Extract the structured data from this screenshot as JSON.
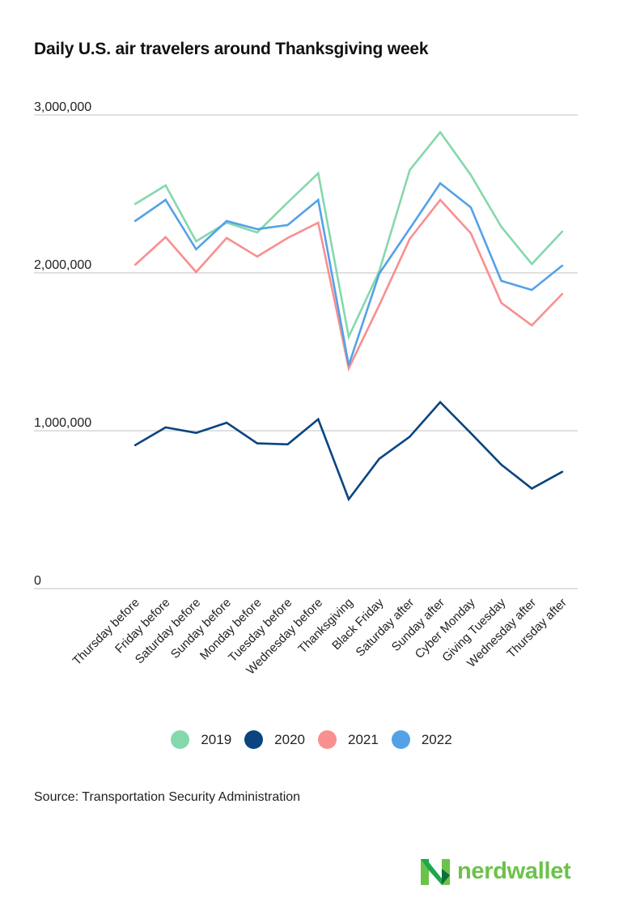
{
  "chart_data": {
    "type": "line",
    "title": "Daily U.S. air travelers around Thanksgiving week",
    "xlabel": "",
    "ylabel": "",
    "ylim": [
      0,
      3000000
    ],
    "yticks": [
      0,
      1000000,
      2000000,
      3000000
    ],
    "ytick_labels": [
      "0",
      "1,000,000",
      "2,000,000",
      "3,000,000"
    ],
    "grid": true,
    "legend_position": "bottom",
    "categories": [
      "Thursday before",
      "Friday before",
      "Saturday before",
      "Sunday before",
      "Monday before",
      "Tuesday before",
      "Wednesday before",
      "Thanksgiving",
      "Black Friday",
      "Saturday after",
      "Sunday after",
      "Cyber Monday",
      "Giving Tuesday",
      "Wednesday after",
      "Thursday after"
    ],
    "series": [
      {
        "name": "2019",
        "color": "#85d8ab",
        "values": [
          2436000,
          2554000,
          2200000,
          2318000,
          2256000,
          2446000,
          2631000,
          1595000,
          2010000,
          2651000,
          2891000,
          2620000,
          2292000,
          2056000,
          2262000
        ]
      },
      {
        "name": "2020",
        "color": "#0b4480",
        "values": [
          908000,
          1021000,
          986000,
          1051000,
          920000,
          914000,
          1073000,
          566000,
          822000,
          962000,
          1181000,
          985000,
          785000,
          634000,
          740000
        ]
      },
      {
        "name": "2021",
        "color": "#f98f8f",
        "values": [
          2051000,
          2226000,
          2005000,
          2221000,
          2103000,
          2221000,
          2318000,
          1395000,
          1795000,
          2215000,
          2462000,
          2251000,
          1810000,
          1667000,
          1867000
        ]
      },
      {
        "name": "2022",
        "color": "#54a1e8",
        "values": [
          2328000,
          2462000,
          2149000,
          2328000,
          2277000,
          2303000,
          2462000,
          1415000,
          1995000,
          2280000,
          2567000,
          2415000,
          1949000,
          1892000,
          2046000
        ]
      }
    ]
  },
  "source": "Source: Transportation Security Administration",
  "logo": {
    "text": "nerdwallet",
    "icon": "nerdwallet-n-logo-icon"
  }
}
